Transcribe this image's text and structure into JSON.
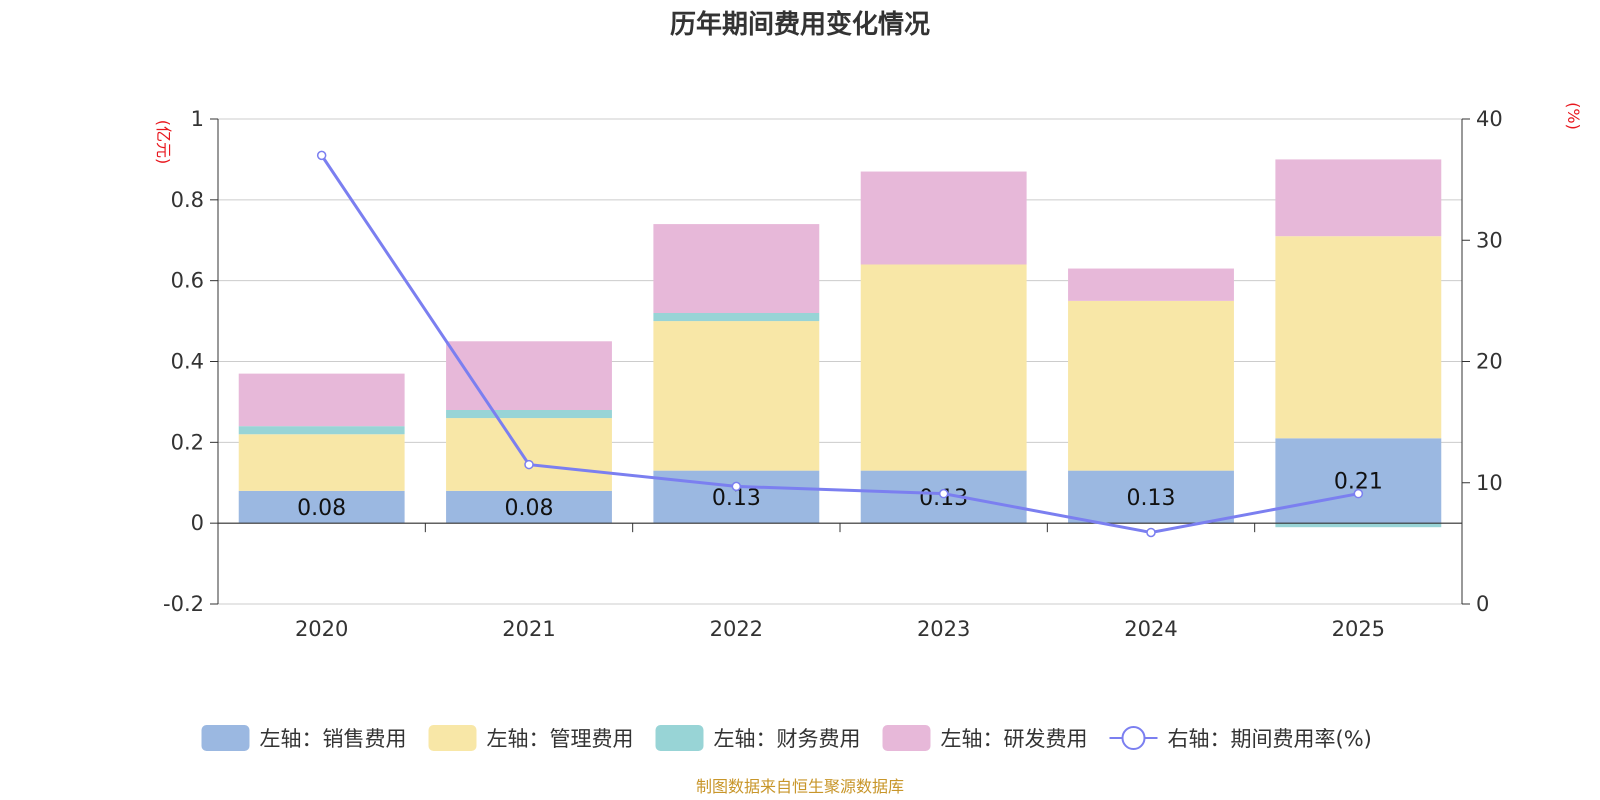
{
  "chart_data": {
    "type": "bar",
    "stacked": true,
    "title": "历年期间费用变化情况",
    "categories": [
      "2020",
      "2021",
      "2022",
      "2023",
      "2024",
      "2025"
    ],
    "y_left": {
      "unit": "(亿元)",
      "ylim": [
        -0.2,
        1.0
      ],
      "ticks": [
        "1",
        "0.8",
        "0.6",
        "0.4",
        "0.2",
        "0",
        "-0.2"
      ]
    },
    "y_right": {
      "unit": "(%)",
      "ylim": [
        0,
        40
      ],
      "ticks": [
        "40",
        "30",
        "20",
        "10",
        "0"
      ]
    },
    "series": [
      {
        "name": "左轴：销售费用",
        "color": "#9bb8e1",
        "values": [
          0.08,
          0.08,
          0.13,
          0.13,
          0.13,
          0.21
        ],
        "labels": [
          "0.08",
          "0.08",
          "0.13",
          "0.13",
          "0.13",
          "0.21"
        ]
      },
      {
        "name": "左轴：管理费用",
        "color": "#f8e7a7",
        "values": [
          0.14,
          0.18,
          0.37,
          0.51,
          0.42,
          0.5
        ]
      },
      {
        "name": "左轴：财务费用",
        "color": "#98d4d6",
        "values": [
          0.02,
          0.02,
          0.02,
          0.0,
          0.0,
          -0.01
        ]
      },
      {
        "name": "左轴：研发费用",
        "color": "#e7b8d9",
        "values": [
          0.13,
          0.17,
          0.22,
          0.23,
          0.08,
          0.19
        ]
      }
    ],
    "line": {
      "name": "右轴：期间费用率(%)",
      "color": "#7b7ff0",
      "axis": "right",
      "values": [
        37.0,
        11.5,
        9.7,
        9.1,
        5.9,
        9.1
      ]
    },
    "source": "制图数据来自恒生聚源数据库"
  }
}
